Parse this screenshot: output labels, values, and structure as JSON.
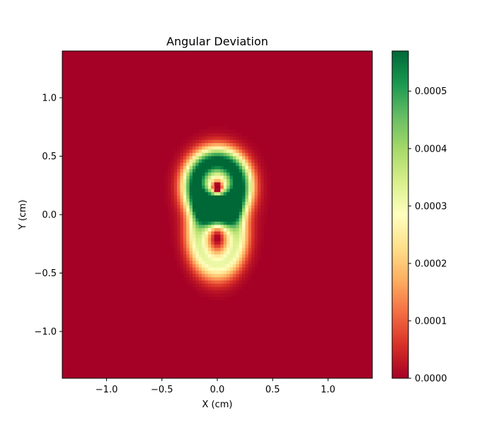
{
  "chart_data": {
    "type": "heatmap",
    "title": "Angular Deviation",
    "xlabel": "X (cm)",
    "ylabel": "Y (cm)",
    "xlim": [
      -1.4,
      1.4
    ],
    "ylim": [
      -1.4,
      1.4
    ],
    "xticks": [
      -1.0,
      -0.5,
      0.0,
      0.5,
      1.0
    ],
    "xtick_labels": [
      "−1.0",
      "−0.5",
      "0.0",
      "0.5",
      "1.0"
    ],
    "yticks": [
      -1.0,
      -0.5,
      0.0,
      0.5,
      1.0
    ],
    "ytick_labels": [
      "−1.0",
      "−0.5",
      "0.0",
      "0.5",
      "1.0"
    ],
    "colormap": "RdYlGn",
    "colorbar": {
      "range": [
        0,
        0.00057
      ],
      "ticks": [
        0,
        0.0001,
        0.0002,
        0.0003,
        0.0004,
        0.0005
      ],
      "tick_labels": [
        "0.0000",
        "0.0001",
        "0.0002",
        "0.0003",
        "0.0004",
        "0.0005"
      ]
    },
    "grid": false,
    "features": [
      {
        "name": "upper lobe maximum",
        "x": 0.0,
        "y": 0.27,
        "value": 0.00055
      },
      {
        "name": "central peak minimum",
        "x": 0.0,
        "y": 0.23,
        "value": 5e-05
      },
      {
        "name": "lower lobe minimum",
        "x": 0.0,
        "y": -0.17,
        "value": 5e-05
      },
      {
        "name": "background",
        "value": 0.0
      }
    ],
    "colors": {
      "low": "#a50026",
      "mid": "#ffffbf",
      "high": "#006837"
    }
  }
}
